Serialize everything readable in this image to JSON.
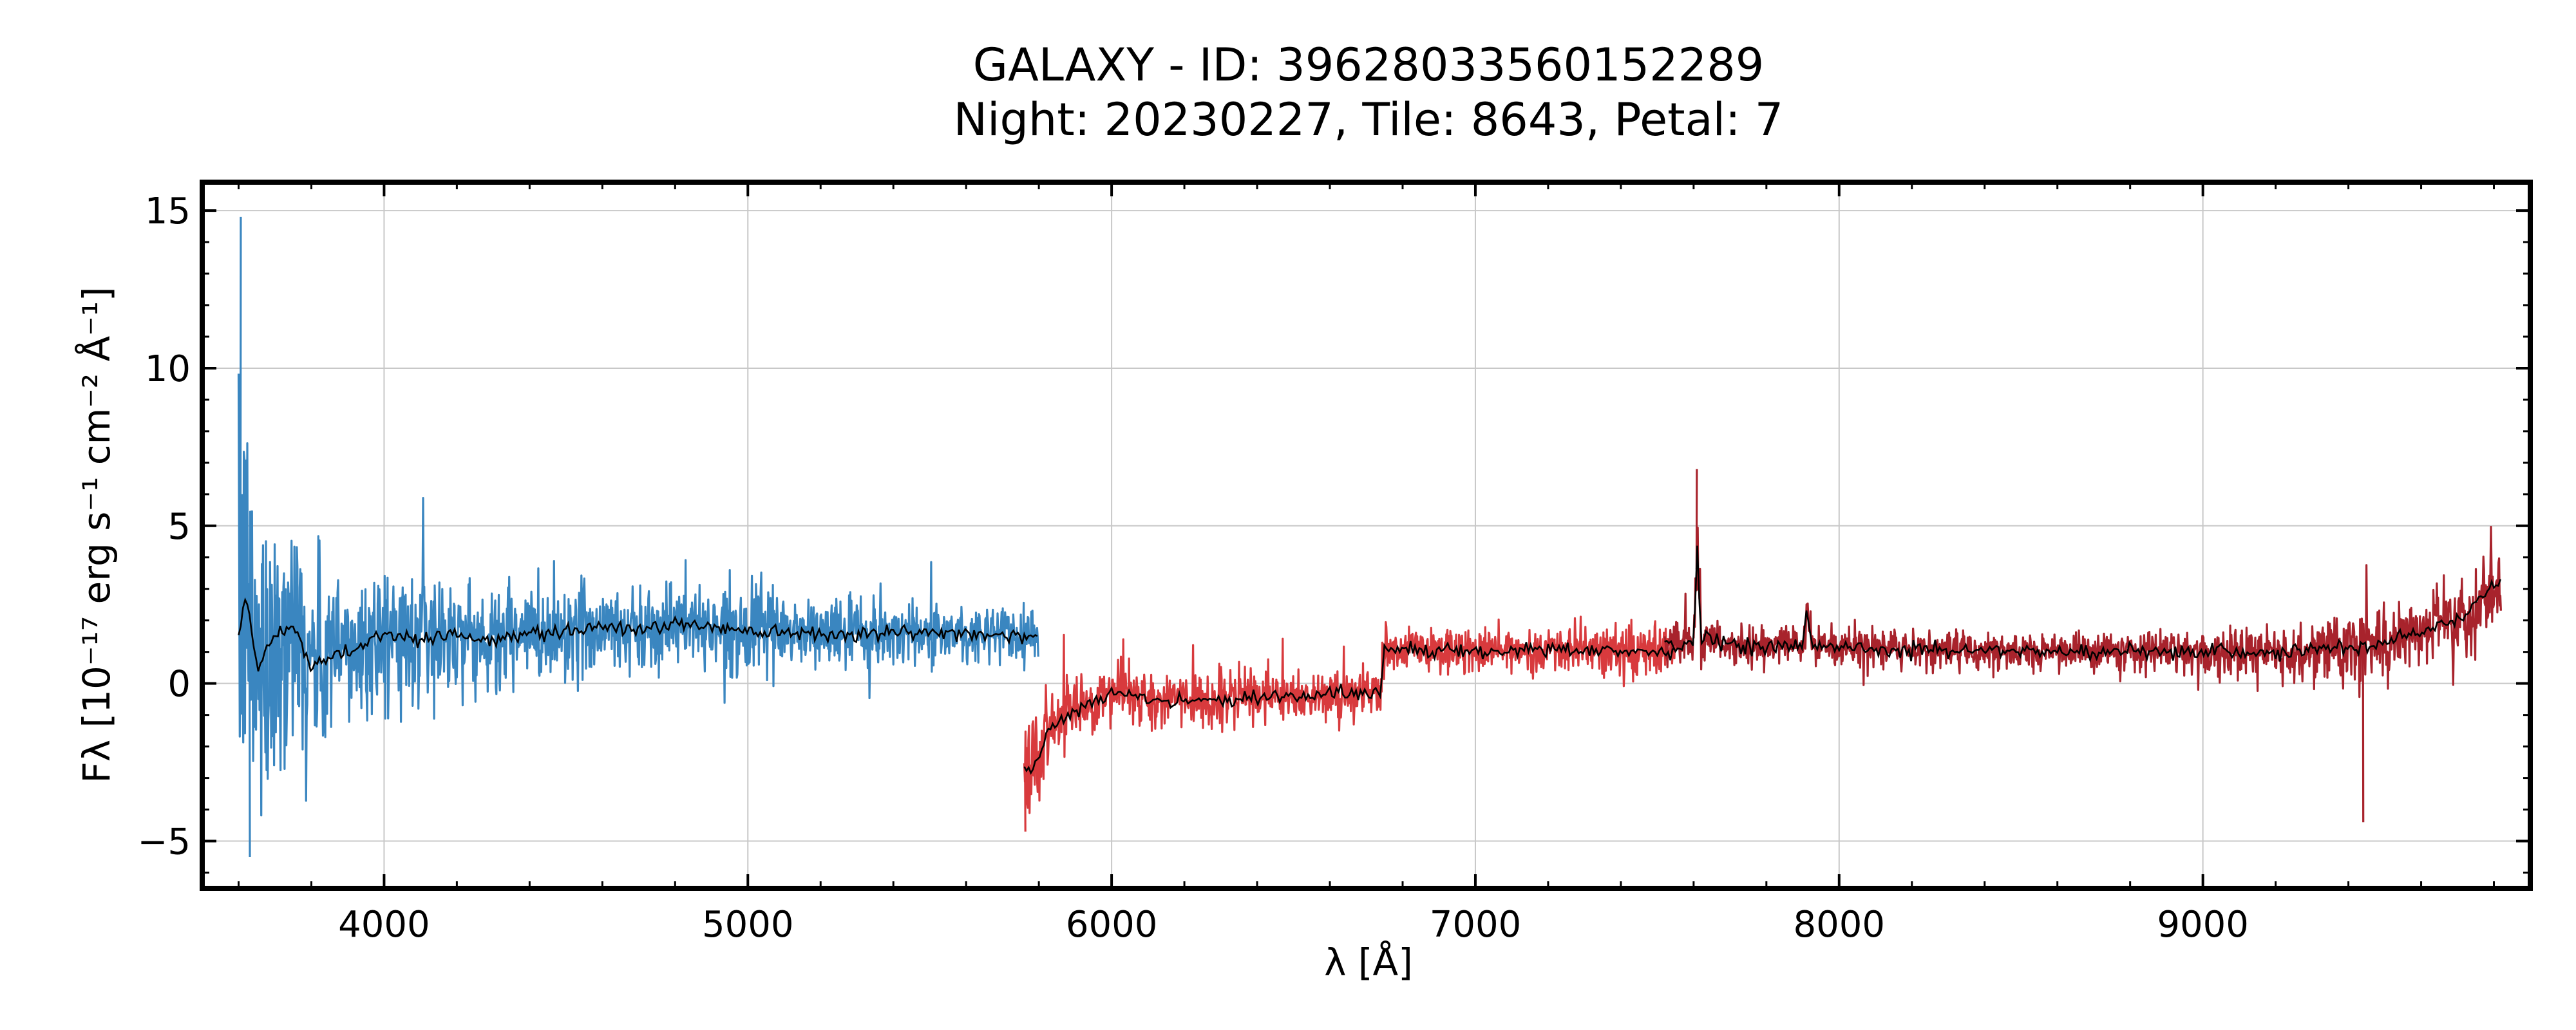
{
  "chart_data": {
    "type": "line",
    "title": "GALAXY - ID: 39628033560152289",
    "subtitle": "Night: 20230227, Tile: 8643, Petal: 7",
    "xlabel": "λ [Å]",
    "ylabel": "Fλ [10⁻¹⁷ erg s⁻¹ cm⁻² Å⁻¹]",
    "xlim": [
      3500,
      9900
    ],
    "ylim": [
      -6.5,
      15.9
    ],
    "xticks": [
      4000,
      5000,
      6000,
      7000,
      8000,
      9000
    ],
    "xtick_labels": [
      "4000",
      "5000",
      "6000",
      "7000",
      "8000",
      "9000"
    ],
    "yticks": [
      -5,
      0,
      5,
      10,
      15
    ],
    "ytick_labels": [
      "−5",
      "0",
      "5",
      "10",
      "15"
    ],
    "grid": true,
    "legend": "none",
    "series": [
      {
        "arm": "b",
        "color": "#3a86c0",
        "x": [
          3600,
          3620,
          3650,
          3700,
          3750,
          3800,
          3850,
          3900,
          4000,
          4100,
          4200,
          4300,
          4400,
          4500,
          4600,
          4700,
          4800,
          5000,
          5200,
          5400,
          5600,
          5800
        ],
        "model": [
          1.5,
          2.8,
          0.5,
          1.5,
          1.8,
          0.5,
          0.9,
          1.0,
          1.6,
          1.4,
          1.6,
          1.3,
          1.6,
          1.7,
          1.8,
          1.7,
          1.9,
          1.7,
          1.6,
          1.6,
          1.6,
          1.5
        ],
        "scatter": [
          3.0,
          3.0,
          2.8,
          2.4,
          2.0,
          1.7,
          1.5,
          1.3,
          1.1,
          1.0,
          0.9,
          0.85,
          0.8,
          0.8,
          0.75,
          0.7,
          0.65,
          0.6,
          0.55,
          0.5,
          0.5,
          0.5
        ],
        "peak_flux": 14.8,
        "min_flux": -5.5
      },
      {
        "arm": "r",
        "color": "#d83a3d",
        "x": [
          5760,
          5780,
          5830,
          5900,
          5950,
          6000,
          6100,
          6300,
          6500,
          6700,
          6740,
          6750,
          7000,
          7200,
          7500,
          7550
        ],
        "model": [
          -2.6,
          -2.8,
          -1.5,
          -0.8,
          -0.5,
          -0.3,
          -0.5,
          -0.5,
          -0.4,
          -0.3,
          -0.4,
          1.1,
          1.0,
          1.1,
          1.0,
          1.0
        ],
        "scatter": [
          0.9,
          0.9,
          0.7,
          0.5,
          0.45,
          0.45,
          0.45,
          0.45,
          0.4,
          0.4,
          0.4,
          0.4,
          0.35,
          0.35,
          0.4,
          0.4
        ],
        "min_flux": -4.7
      },
      {
        "arm": "z",
        "color": "#a8232c",
        "x": [
          7520,
          7600,
          7610,
          7620,
          7700,
          7900,
          7910,
          7930,
          8200,
          8500,
          9000,
          9300,
          9500,
          9700,
          9820
        ],
        "model": [
          1.2,
          1.3,
          4.2,
          1.5,
          1.2,
          1.2,
          2.2,
          1.2,
          1.1,
          1.0,
          1.0,
          1.0,
          1.3,
          2.0,
          3.3
        ],
        "scatter": [
          0.35,
          0.35,
          0.8,
          0.35,
          0.3,
          0.3,
          0.5,
          0.3,
          0.3,
          0.3,
          0.3,
          0.45,
          0.6,
          0.6,
          0.7
        ],
        "peak_flux": 6.8,
        "min_flux": -4.4
      }
    ],
    "model_color": "#000000"
  }
}
